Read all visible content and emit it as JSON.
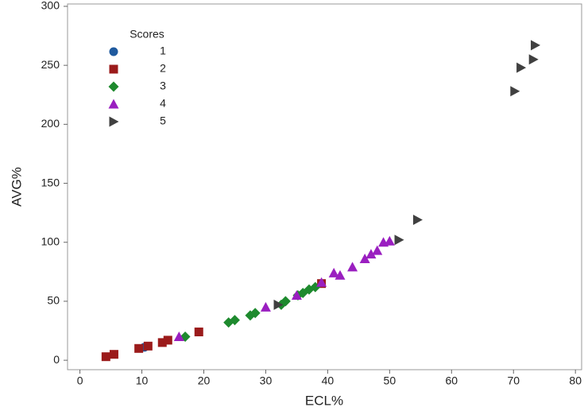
{
  "chart_data": {
    "type": "scatter",
    "x_label": "ECL%",
    "y_label": "AVG%",
    "legend_title": "Scores",
    "legend_position": "upper left",
    "xlim": [
      -2,
      81
    ],
    "ylim": [
      -8,
      302
    ],
    "xticks": [
      0,
      10,
      20,
      30,
      40,
      50,
      60,
      70,
      80
    ],
    "yticks": [
      0,
      50,
      100,
      150,
      200,
      250,
      300
    ],
    "series": [
      {
        "name": "1",
        "color": "#1f5a9e",
        "marker": "circle",
        "x": [
          10.4
        ],
        "values": [
          11
        ]
      },
      {
        "name": "2",
        "color": "#9b1b1b",
        "marker": "square",
        "x": [
          4.2,
          5.5,
          9.5,
          11,
          13.3,
          14.2,
          19.2,
          39
        ],
        "values": [
          3,
          5,
          10,
          12,
          15,
          17,
          24,
          65
        ]
      },
      {
        "name": "3",
        "color": "#1e8a2e",
        "marker": "diamond",
        "x": [
          17,
          24,
          25,
          27.5,
          28.3,
          32.5,
          33.2,
          35.2,
          36,
          37,
          38
        ],
        "values": [
          20,
          32,
          34,
          38,
          40,
          47,
          50,
          55,
          57,
          60,
          62
        ]
      },
      {
        "name": "4",
        "color": "#9a1fc0",
        "marker": "triangle",
        "x": [
          16,
          30,
          35,
          39,
          41,
          42,
          44,
          46,
          47,
          48,
          49,
          50
        ],
        "values": [
          20,
          45,
          55,
          66,
          74,
          72,
          79,
          86,
          90,
          93,
          100,
          101
        ]
      },
      {
        "name": "5",
        "color": "#404040",
        "marker": "triangle-right",
        "x": [
          32,
          51.5,
          54.5,
          70.2,
          71.2,
          73.2,
          73.5
        ],
        "values": [
          47,
          102,
          119,
          228,
          248,
          255,
          267
        ]
      }
    ]
  }
}
